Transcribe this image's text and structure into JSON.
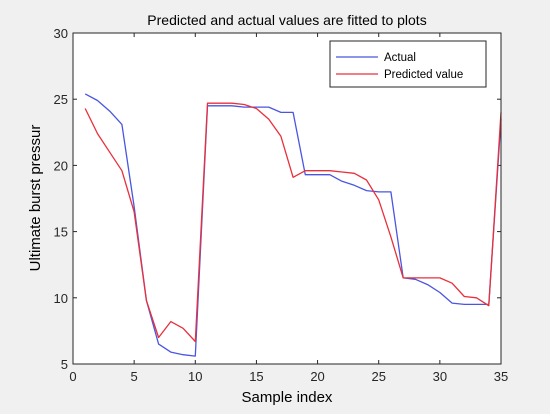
{
  "chart_data": {
    "type": "line",
    "title": "Predicted and actual values are fitted to plots",
    "xlabel": "Sample index",
    "ylabel": "Ultimate burst pressur",
    "xlim": [
      0,
      35
    ],
    "ylim": [
      5,
      30
    ],
    "xticks": [
      0,
      5,
      10,
      15,
      20,
      25,
      30,
      35
    ],
    "yticks": [
      5,
      10,
      15,
      20,
      25,
      30
    ],
    "grid": false,
    "legend_position": "top-right",
    "x": [
      1,
      2,
      3,
      4,
      5,
      6,
      7,
      8,
      9,
      10,
      11,
      12,
      13,
      14,
      15,
      16,
      17,
      18,
      19,
      20,
      21,
      22,
      23,
      24,
      25,
      26,
      27,
      28,
      29,
      30,
      31,
      32,
      33,
      34,
      35
    ],
    "series": [
      {
        "name": "Actual",
        "color": "#4a56e0",
        "values": [
          25.4,
          24.9,
          24.1,
          23.1,
          16.9,
          9.8,
          6.5,
          5.9,
          5.7,
          5.6,
          24.5,
          24.5,
          24.5,
          24.4,
          24.4,
          24.4,
          24.0,
          24.0,
          19.3,
          19.3,
          19.3,
          18.8,
          18.5,
          18.1,
          18.0,
          18.0,
          11.5,
          11.4,
          11.0,
          10.4,
          9.6,
          9.5,
          9.5,
          9.5,
          23.5
        ]
      },
      {
        "name": "Predicted value",
        "color": "#e8303c",
        "values": [
          24.3,
          22.4,
          21.0,
          19.6,
          16.5,
          9.8,
          7.0,
          8.2,
          7.7,
          6.7,
          24.7,
          24.7,
          24.7,
          24.6,
          24.3,
          23.5,
          22.2,
          19.1,
          19.6,
          19.6,
          19.6,
          19.5,
          19.4,
          18.9,
          17.4,
          14.6,
          11.5,
          11.5,
          11.5,
          11.5,
          11.1,
          10.1,
          10.0,
          9.4,
          24.0
        ]
      }
    ]
  }
}
